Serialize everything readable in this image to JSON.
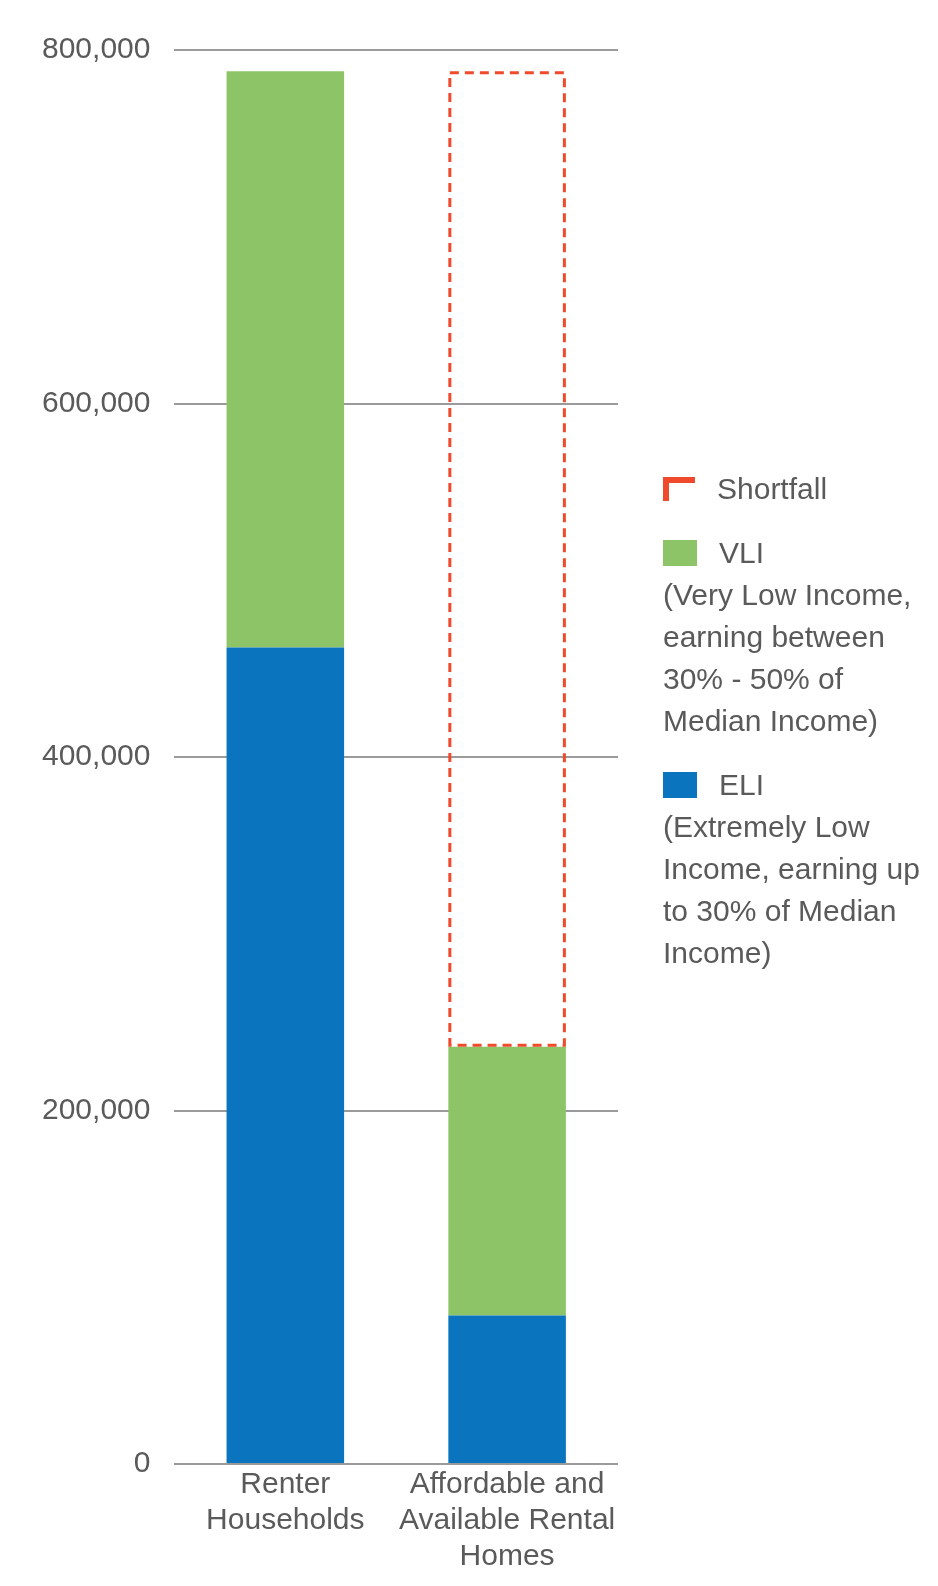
{
  "chart_data": {
    "type": "bar",
    "stacked": true,
    "categories": [
      "Renter Households",
      "Affordable and Available Rental Homes"
    ],
    "series": [
      {
        "name": "ELI",
        "color": "#0a74bf",
        "values": [
          462000,
          84000
        ]
      },
      {
        "name": "VLI",
        "color": "#8dc467",
        "values": [
          326000,
          152000
        ]
      },
      {
        "name": "Shortfall",
        "color": "#ef4a2b",
        "values": [
          0,
          552000
        ]
      }
    ],
    "ylim": [
      0,
      800000
    ],
    "yticks": [
      0,
      {
        "value": 200000,
        "label": "200,000"
      },
      {
        "value": 400000,
        "label": "400,000"
      },
      {
        "value": 600000,
        "label": "600,000"
      },
      {
        "value": 800000,
        "label": "800,000"
      }
    ],
    "grid": "y",
    "legend": "right",
    "annotations": [
      "(Very Low Income, earning between 30% - 50% of Median Income)",
      "(Extremely Low Income, earning up to 30% of Median Income)"
    ]
  }
}
